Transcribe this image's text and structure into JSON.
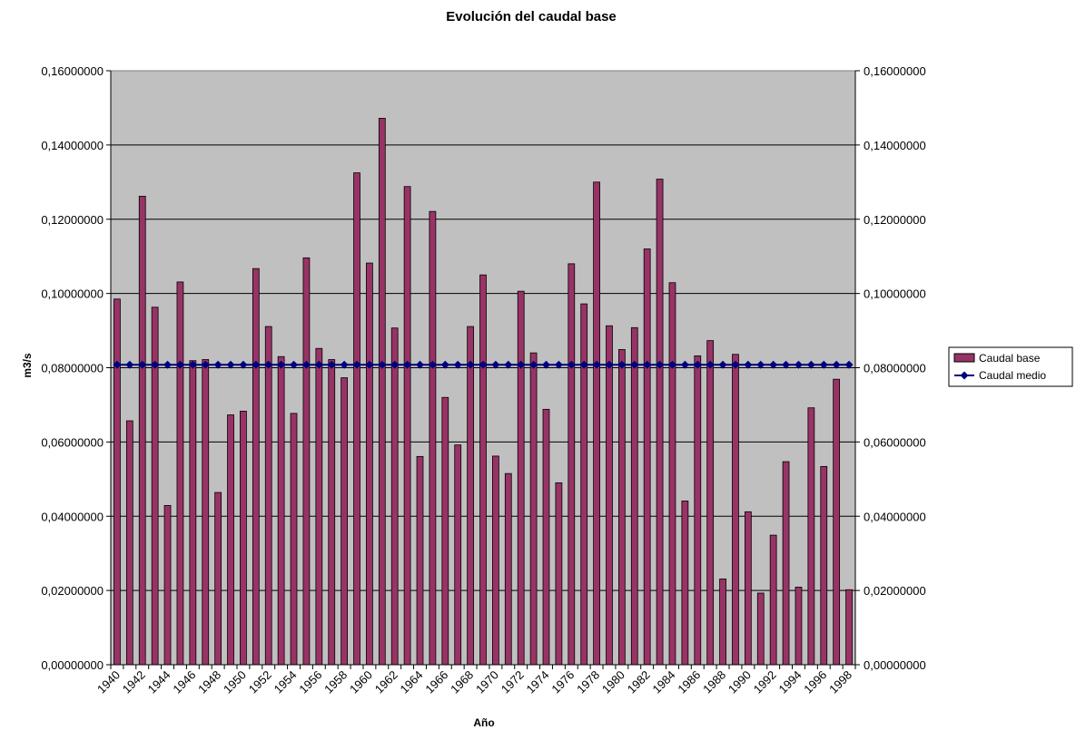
{
  "chart_data": {
    "type": "bar",
    "title": "Evolución del caudal base",
    "xlabel": "Año",
    "ylabel": "m3/s",
    "ylim": [
      0,
      0.16
    ],
    "yticks": [
      "0,00000000",
      "0,02000000",
      "0,04000000",
      "0,06000000",
      "0,08000000",
      "0,10000000",
      "0,12000000",
      "0,14000000",
      "0,16000000"
    ],
    "categories": [
      1940,
      1941,
      1942,
      1943,
      1944,
      1945,
      1946,
      1947,
      1948,
      1949,
      1950,
      1951,
      1952,
      1953,
      1954,
      1955,
      1956,
      1957,
      1958,
      1959,
      1960,
      1961,
      1962,
      1963,
      1964,
      1965,
      1966,
      1967,
      1968,
      1969,
      1970,
      1971,
      1972,
      1973,
      1974,
      1975,
      1976,
      1977,
      1978,
      1979,
      1980,
      1981,
      1982,
      1983,
      1984,
      1985,
      1986,
      1987,
      1988,
      1989,
      1990,
      1991,
      1992,
      1993,
      1994,
      1995,
      1996,
      1997,
      1998
    ],
    "xtick_labels": [
      "1940",
      "1942",
      "1944",
      "1946",
      "1948",
      "1950",
      "1952",
      "1954",
      "1956",
      "1958",
      "1960",
      "1962",
      "1964",
      "1966",
      "1968",
      "1970",
      "1972",
      "1974",
      "1976",
      "1978",
      "1980",
      "1982",
      "1984",
      "1986",
      "1988",
      "1990",
      "1992",
      "1994",
      "1996",
      "1998"
    ],
    "series": [
      {
        "name": "Caudal base",
        "kind": "bar",
        "color": "#993366",
        "values": [
          0.0985,
          0.0657,
          0.1262,
          0.0963,
          0.0429,
          0.1031,
          0.0819,
          0.0822,
          0.0464,
          0.0673,
          0.0683,
          0.1067,
          0.0911,
          0.083,
          0.0677,
          0.1096,
          0.0852,
          0.0822,
          0.0773,
          0.1325,
          0.1082,
          0.1472,
          0.0907,
          0.1288,
          0.0561,
          0.1221,
          0.072,
          0.0592,
          0.0911,
          0.105,
          0.0562,
          0.0515,
          0.1006,
          0.084,
          0.0688,
          0.049,
          0.108,
          0.0972,
          0.13,
          0.0913,
          0.0849,
          0.0908,
          0.112,
          0.1308,
          0.1029,
          0.0441,
          0.0832,
          0.0873,
          0.0231,
          0.0836,
          0.0412,
          0.0193,
          0.0349,
          0.0547,
          0.0209,
          0.0692,
          0.0534,
          0.0769,
          0.0202
        ]
      },
      {
        "name": "Caudal medio",
        "kind": "line",
        "color": "#000080",
        "constant": 0.0808
      }
    ],
    "plot_bg": "#c0c0c0",
    "legend": "right"
  }
}
